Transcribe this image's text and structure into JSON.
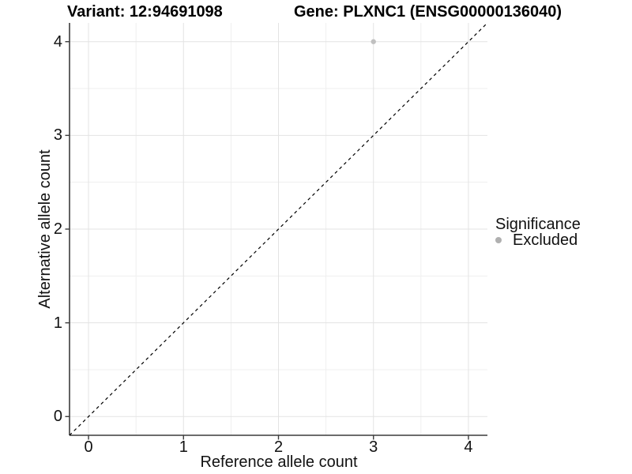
{
  "titles": {
    "variant": "Variant: 12:94691098",
    "gene": "Gene: PLXNC1 (ENSG00000136040)"
  },
  "colors": {
    "grid_major": "#e3e3e3",
    "grid_minor": "#efefef",
    "axis_line": "#3c3c3c",
    "tick_mark": "#3c3c3c",
    "identity_line": "#000000",
    "point": "#c0c0c0",
    "legend_marker": "#b0b0b0",
    "text": "#111111"
  },
  "chart_data": {
    "type": "scatter",
    "xlabel": "Reference allele count",
    "ylabel": "Alternative allele count",
    "xlim": [
      -0.2,
      4.2
    ],
    "ylim": [
      -0.2,
      4.2
    ],
    "x_ticks": [
      0,
      1,
      2,
      3,
      4
    ],
    "y_ticks": [
      0,
      1,
      2,
      3,
      4
    ],
    "x_minor_ticks": [
      0.5,
      1.5,
      2.5,
      3.5
    ],
    "y_minor_ticks": [
      0.5,
      1.5,
      2.5,
      3.5
    ],
    "grid": true,
    "series": [
      {
        "name": "Excluded",
        "points": [
          {
            "x": 3,
            "y": 4
          }
        ],
        "point_radius": 3.2
      }
    ],
    "reference_line": {
      "kind": "identity y=x",
      "from": [
        -0.2,
        -0.2
      ],
      "to": [
        4.2,
        4.2
      ],
      "style": "dashed"
    },
    "legend": {
      "title": "Significance",
      "position": "right",
      "items": [
        {
          "label": "Excluded",
          "marker": "circle"
        }
      ]
    }
  }
}
